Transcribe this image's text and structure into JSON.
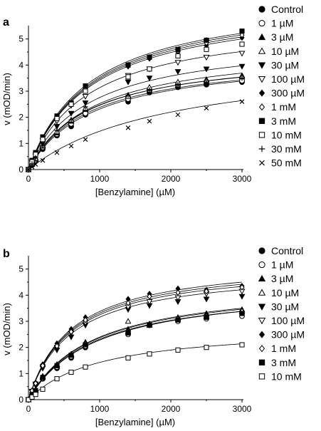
{
  "chart_data": [
    {
      "type": "scatter",
      "panel_label": "a",
      "xlabel": "[Benzylamine] (µM)",
      "ylabel": "v (mOD/min)",
      "xlim": [
        0,
        3000
      ],
      "ylim": [
        0,
        5.4
      ],
      "xticks": [
        "0",
        "1000",
        "2000",
        "3000"
      ],
      "yticks": [
        "0",
        "1",
        "2",
        "3",
        "4",
        "5"
      ],
      "grid": false,
      "legend_position": "right",
      "x": [
        0,
        50,
        100,
        200,
        400,
        600,
        800,
        1400,
        1700,
        2100,
        2500,
        3000
      ],
      "series": [
        {
          "name": "Control",
          "marker": "filled-circle",
          "vmax": 4.4,
          "km": 900,
          "values": [
            0,
            0.17,
            0.32,
            0.78,
            1.3,
            1.65,
            2.1,
            2.6,
            2.95,
            3.15,
            3.25,
            3.35
          ]
        },
        {
          "name": "1 µM",
          "marker": "open-circle",
          "vmax": 4.4,
          "km": 850,
          "values": [
            0,
            0.2,
            0.36,
            0.85,
            1.35,
            1.75,
            2.15,
            2.7,
            3.05,
            3.25,
            4.95,
            3.4
          ]
        },
        {
          "name": "3 µM",
          "marker": "filled-triangle",
          "vmax": 4.55,
          "km": 850,
          "values": [
            0,
            0.2,
            0.4,
            0.9,
            1.4,
            1.85,
            2.3,
            2.85,
            3.1,
            3.3,
            3.45,
            3.6
          ]
        },
        {
          "name": "10 µM",
          "marker": "open-triangle",
          "vmax": 4.5,
          "km": 820,
          "values": [
            0,
            0.22,
            0.42,
            0.92,
            1.45,
            1.9,
            2.35,
            2.8,
            3.15,
            3.35,
            3.4,
            3.55
          ]
        },
        {
          "name": "30 µM",
          "marker": "filled-triangle-down",
          "vmax": 5.1,
          "km": 850,
          "values": [
            0,
            0.25,
            0.5,
            1.0,
            1.65,
            2.15,
            2.55,
            3.35,
            3.5,
            3.75,
            3.85,
            3.95
          ]
        },
        {
          "name": "100 µM",
          "marker": "open-triangle-down",
          "vmax": 5.8,
          "km": 850,
          "values": [
            0,
            0.3,
            0.55,
            1.1,
            1.85,
            2.45,
            2.8,
            3.6,
            3.85,
            4.1,
            4.3,
            4.45
          ]
        },
        {
          "name": "300 µM",
          "marker": "filled-diamond",
          "vmax": 6.6,
          "km": 900,
          "values": [
            0,
            0.32,
            0.6,
            1.2,
            2.0,
            2.55,
            3.1,
            3.95,
            4.25,
            4.5,
            4.75,
            5.05
          ]
        },
        {
          "name": "1 mM",
          "marker": "open-diamond",
          "vmax": 6.7,
          "km": 900,
          "values": [
            0,
            0.33,
            0.62,
            1.2,
            2.0,
            2.55,
            3.1,
            4.0,
            4.3,
            4.55,
            4.85,
            5.15
          ]
        },
        {
          "name": "3 mM",
          "marker": "filled-square",
          "vmax": 6.75,
          "km": 880,
          "values": [
            0,
            0.35,
            0.65,
            1.25,
            2.05,
            2.55,
            3.2,
            4.0,
            4.3,
            4.6,
            4.95,
            5.3
          ]
        },
        {
          "name": "10 mM",
          "marker": "open-square",
          "vmax": 6.5,
          "km": 900,
          "values": [
            0,
            0.3,
            0.58,
            1.15,
            1.95,
            2.5,
            3.0,
            3.55,
            3.85,
            4.35,
            4.6,
            4.8
          ]
        },
        {
          "name": "30 mM",
          "marker": "plus",
          "vmax": 4.8,
          "km": 900,
          "values": [
            0,
            0.22,
            0.45,
            0.9,
            1.5,
            1.9,
            2.4,
            2.85,
            3.05,
            3.25,
            3.35,
            3.5
          ]
        },
        {
          "name": "50 mM",
          "marker": "cross",
          "vmax": 4.4,
          "km": 2000,
          "values": [
            0,
            0.1,
            0.2,
            0.35,
            0.65,
            0.9,
            1.15,
            1.6,
            1.85,
            2.1,
            2.35,
            2.6
          ]
        }
      ]
    },
    {
      "type": "scatter",
      "panel_label": "b",
      "xlabel": "[Benzylamine] (µM)",
      "ylabel": "v (mOD/min)",
      "xlim": [
        0,
        3000
      ],
      "ylim": [
        0,
        5.4
      ],
      "xticks": [
        "0",
        "1000",
        "2000",
        "3000"
      ],
      "yticks": [
        "0",
        "1",
        "2",
        "3",
        "4",
        "5"
      ],
      "grid": false,
      "legend_position": "right",
      "x": [
        0,
        50,
        100,
        200,
        400,
        600,
        800,
        1400,
        1700,
        2100,
        2500,
        3000
      ],
      "series": [
        {
          "name": "Control",
          "marker": "filled-circle",
          "vmax": 4.45,
          "km": 950,
          "values": [
            0,
            0.18,
            0.3,
            0.8,
            1.2,
            1.6,
            2.0,
            2.55,
            2.85,
            3.05,
            3.2,
            3.3
          ]
        },
        {
          "name": "1 µM",
          "marker": "open-circle",
          "vmax": 4.45,
          "km": 950,
          "values": [
            0,
            0.18,
            0.32,
            0.82,
            1.25,
            1.65,
            2.05,
            2.5,
            2.85,
            3.0,
            3.1,
            3.2
          ]
        },
        {
          "name": "3 µM",
          "marker": "filled-triangle",
          "vmax": 4.55,
          "km": 900,
          "values": [
            0,
            0.2,
            0.35,
            0.9,
            1.35,
            1.75,
            2.2,
            2.7,
            2.9,
            3.15,
            3.3,
            3.45
          ]
        },
        {
          "name": "10 µM",
          "marker": "open-triangle",
          "vmax": 4.5,
          "km": 900,
          "values": [
            0,
            0.2,
            0.35,
            0.85,
            1.3,
            1.7,
            2.15,
            3.0,
            2.85,
            3.1,
            3.2,
            3.4
          ]
        },
        {
          "name": "30 µM",
          "marker": "filled-triangle-down",
          "vmax": 5.05,
          "km": 600,
          "values": [
            0,
            0.3,
            0.55,
            1.2,
            1.9,
            2.4,
            2.85,
            3.45,
            3.6,
            3.75,
            3.85,
            3.95
          ]
        },
        {
          "name": "100 µM",
          "marker": "open-triangle-down",
          "vmax": 5.2,
          "km": 600,
          "values": [
            0,
            0.32,
            0.6,
            1.25,
            2.0,
            2.55,
            2.95,
            3.55,
            3.75,
            3.9,
            4.05,
            4.15
          ]
        },
        {
          "name": "300 µM",
          "marker": "filled-diamond",
          "vmax": 5.4,
          "km": 600,
          "values": [
            0,
            0.35,
            0.65,
            1.35,
            2.15,
            2.7,
            3.15,
            3.85,
            4.05,
            4.25,
            4.2,
            4.35
          ]
        },
        {
          "name": "1 mM",
          "marker": "open-diamond",
          "vmax": 5.3,
          "km": 600,
          "values": [
            0,
            0.34,
            0.62,
            1.3,
            2.05,
            2.6,
            3.05,
            3.7,
            3.95,
            4.1,
            4.15,
            4.3
          ]
        },
        {
          "name": "3 mM",
          "marker": "filled-square",
          "vmax": 4.4,
          "km": 900,
          "values": [
            0,
            0.2,
            0.35,
            0.85,
            1.3,
            1.7,
            2.1,
            2.55,
            2.85,
            3.05,
            3.15,
            3.3
          ]
        },
        {
          "name": "10 mM",
          "marker": "open-square",
          "vmax": 2.85,
          "km": 1000,
          "values": [
            0,
            0.1,
            0.2,
            0.4,
            0.8,
            1.05,
            1.25,
            1.6,
            1.75,
            1.9,
            2.0,
            2.1
          ]
        }
      ]
    }
  ]
}
